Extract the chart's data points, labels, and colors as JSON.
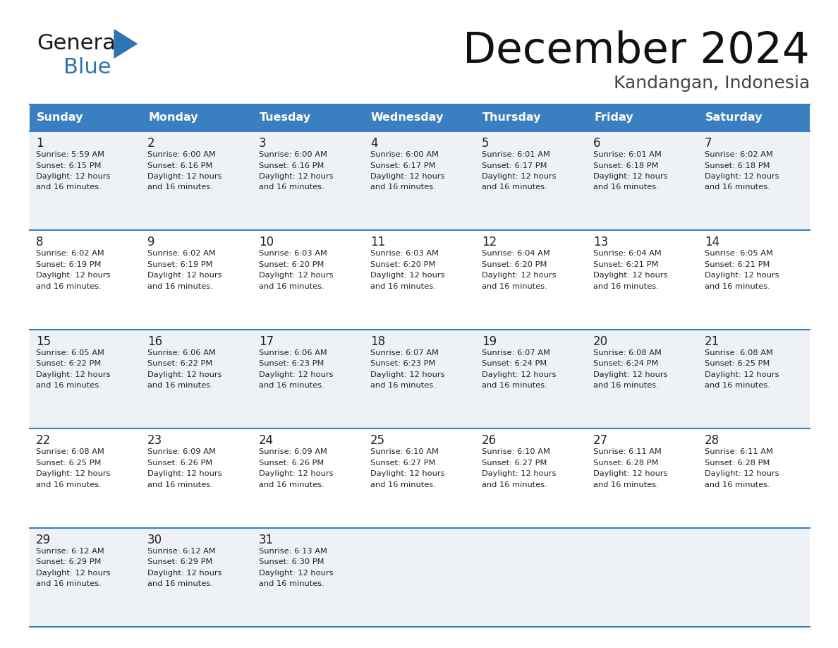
{
  "title": "December 2024",
  "subtitle": "Kandangan, Indonesia",
  "header_color": "#3a7fbf",
  "header_text_color": "#ffffff",
  "bg_color_odd": "#eef2f7",
  "bg_color_even": "#ffffff",
  "line_color": "#3a7fbf",
  "text_color": "#222222",
  "days_of_week": [
    "Sunday",
    "Monday",
    "Tuesday",
    "Wednesday",
    "Thursday",
    "Friday",
    "Saturday"
  ],
  "weeks": [
    [
      {
        "day": 1,
        "sunrise": "5:59 AM",
        "sunset": "6:15 PM"
      },
      {
        "day": 2,
        "sunrise": "6:00 AM",
        "sunset": "6:16 PM"
      },
      {
        "day": 3,
        "sunrise": "6:00 AM",
        "sunset": "6:16 PM"
      },
      {
        "day": 4,
        "sunrise": "6:00 AM",
        "sunset": "6:17 PM"
      },
      {
        "day": 5,
        "sunrise": "6:01 AM",
        "sunset": "6:17 PM"
      },
      {
        "day": 6,
        "sunrise": "6:01 AM",
        "sunset": "6:18 PM"
      },
      {
        "day": 7,
        "sunrise": "6:02 AM",
        "sunset": "6:18 PM"
      }
    ],
    [
      {
        "day": 8,
        "sunrise": "6:02 AM",
        "sunset": "6:19 PM"
      },
      {
        "day": 9,
        "sunrise": "6:02 AM",
        "sunset": "6:19 PM"
      },
      {
        "day": 10,
        "sunrise": "6:03 AM",
        "sunset": "6:20 PM"
      },
      {
        "day": 11,
        "sunrise": "6:03 AM",
        "sunset": "6:20 PM"
      },
      {
        "day": 12,
        "sunrise": "6:04 AM",
        "sunset": "6:20 PM"
      },
      {
        "day": 13,
        "sunrise": "6:04 AM",
        "sunset": "6:21 PM"
      },
      {
        "day": 14,
        "sunrise": "6:05 AM",
        "sunset": "6:21 PM"
      }
    ],
    [
      {
        "day": 15,
        "sunrise": "6:05 AM",
        "sunset": "6:22 PM"
      },
      {
        "day": 16,
        "sunrise": "6:06 AM",
        "sunset": "6:22 PM"
      },
      {
        "day": 17,
        "sunrise": "6:06 AM",
        "sunset": "6:23 PM"
      },
      {
        "day": 18,
        "sunrise": "6:07 AM",
        "sunset": "6:23 PM"
      },
      {
        "day": 19,
        "sunrise": "6:07 AM",
        "sunset": "6:24 PM"
      },
      {
        "day": 20,
        "sunrise": "6:08 AM",
        "sunset": "6:24 PM"
      },
      {
        "day": 21,
        "sunrise": "6:08 AM",
        "sunset": "6:25 PM"
      }
    ],
    [
      {
        "day": 22,
        "sunrise": "6:08 AM",
        "sunset": "6:25 PM"
      },
      {
        "day": 23,
        "sunrise": "6:09 AM",
        "sunset": "6:26 PM"
      },
      {
        "day": 24,
        "sunrise": "6:09 AM",
        "sunset": "6:26 PM"
      },
      {
        "day": 25,
        "sunrise": "6:10 AM",
        "sunset": "6:27 PM"
      },
      {
        "day": 26,
        "sunrise": "6:10 AM",
        "sunset": "6:27 PM"
      },
      {
        "day": 27,
        "sunrise": "6:11 AM",
        "sunset": "6:28 PM"
      },
      {
        "day": 28,
        "sunrise": "6:11 AM",
        "sunset": "6:28 PM"
      }
    ],
    [
      {
        "day": 29,
        "sunrise": "6:12 AM",
        "sunset": "6:29 PM"
      },
      {
        "day": 30,
        "sunrise": "6:12 AM",
        "sunset": "6:29 PM"
      },
      {
        "day": 31,
        "sunrise": "6:13 AM",
        "sunset": "6:30 PM"
      },
      null,
      null,
      null,
      null
    ]
  ],
  "daylight_line1": "Daylight: 12 hours",
  "daylight_line2": "and 16 minutes.",
  "logo_general_color": "#1a1a1a",
  "logo_blue_color": "#2e75b6",
  "logo_triangle_color": "#2e75b6"
}
